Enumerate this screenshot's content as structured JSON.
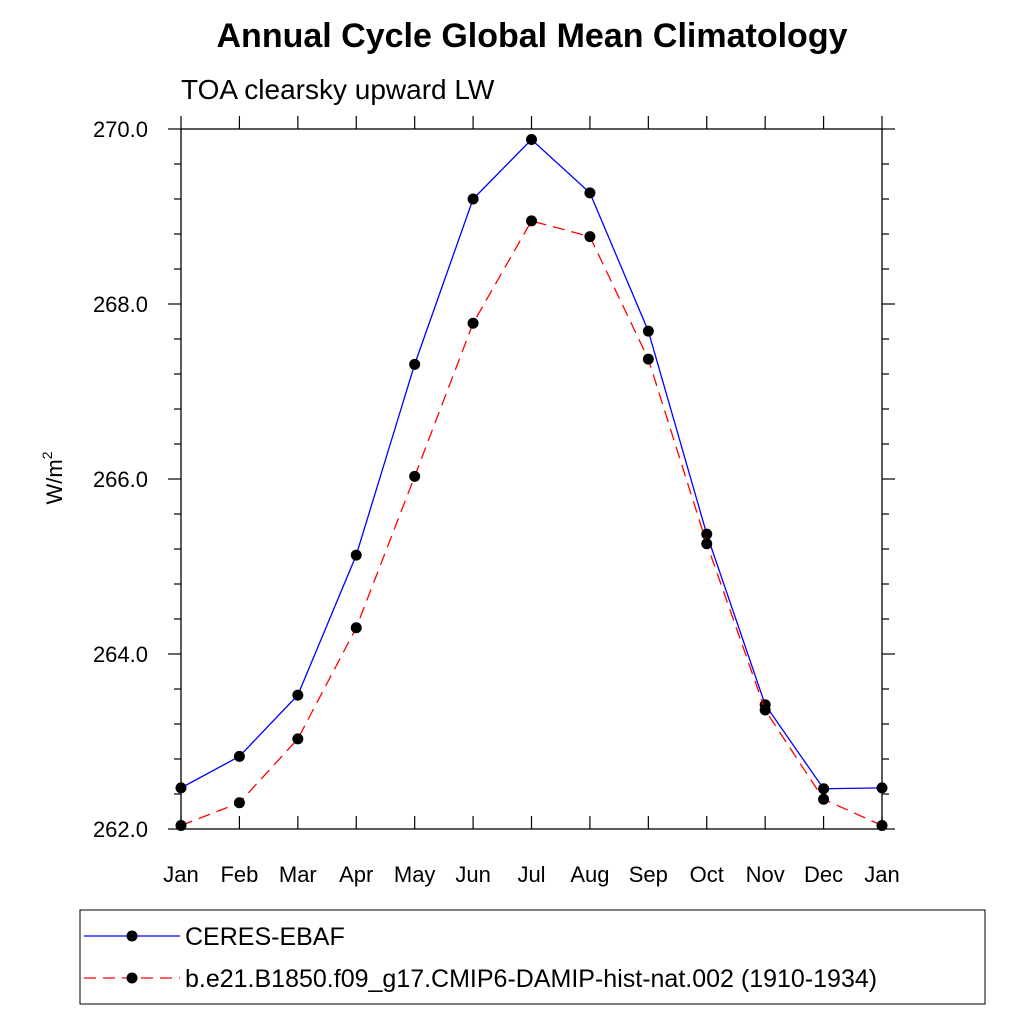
{
  "chart_data": {
    "type": "line",
    "title": "Annual Cycle Global Mean Climatology",
    "subtitle": "TOA clearsky upward LW",
    "ylabel": "W/m",
    "ylabel_superscript": "2",
    "xlabel": "",
    "ylim": [
      262.0,
      270.0
    ],
    "yticks": [
      "262.0",
      "264.0",
      "266.0",
      "268.0",
      "270.0"
    ],
    "grid": false,
    "legend_placement": "bottom",
    "categories": [
      "Jan",
      "Feb",
      "Mar",
      "Apr",
      "May",
      "Jun",
      "Jul",
      "Aug",
      "Sep",
      "Oct",
      "Nov",
      "Dec",
      "Jan"
    ],
    "series": [
      {
        "name": "CERES-EBAF",
        "color": "#0000ff",
        "dash": "solid",
        "marker": "circle",
        "values": [
          262.47,
          262.83,
          263.53,
          265.13,
          267.31,
          269.2,
          269.88,
          269.27,
          267.69,
          265.37,
          263.42,
          262.46,
          262.47
        ]
      },
      {
        "name": "b.e21.B1850.f09_g17.CMIP6-DAMIP-hist-nat.002 (1910-1934)",
        "color": "#ff0000",
        "dash": "dashed",
        "marker": "circle",
        "values": [
          262.04,
          262.3,
          263.03,
          264.3,
          266.03,
          267.78,
          268.95,
          268.77,
          267.37,
          265.26,
          263.36,
          262.34,
          262.04
        ]
      }
    ]
  }
}
